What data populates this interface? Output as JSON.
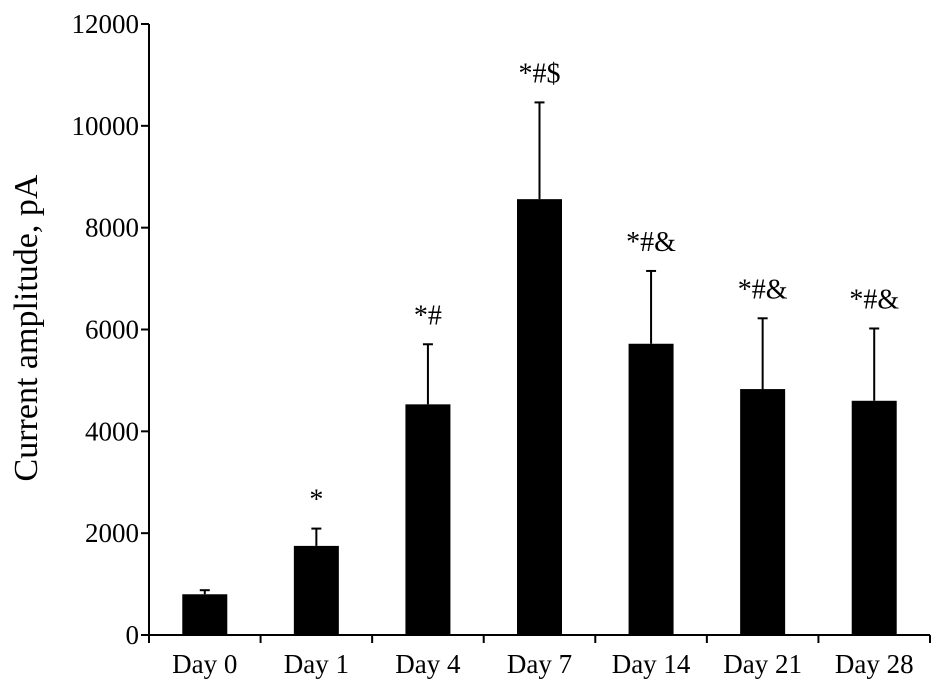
{
  "chart_data": {
    "type": "bar",
    "title": "",
    "xlabel": "",
    "ylabel": "Current amplitude, pA",
    "ylim": [
      0,
      12000
    ],
    "yticks": [
      0,
      2000,
      4000,
      6000,
      8000,
      10000,
      12000
    ],
    "categories": [
      "Day 0",
      "Day 1",
      "Day 4",
      "Day 7",
      "Day 14",
      "Day 21",
      "Day 28"
    ],
    "values": [
      800,
      1750,
      4530,
      8560,
      5720,
      4830,
      4600
    ],
    "error_upper": [
      80,
      340,
      1180,
      1900,
      1430,
      1390,
      1420
    ],
    "annotations": [
      "",
      "*",
      "*#",
      "*#$",
      "*#&",
      "*#&",
      "*#&"
    ],
    "bar_color": "#000000",
    "grid": false,
    "legend": "none"
  }
}
